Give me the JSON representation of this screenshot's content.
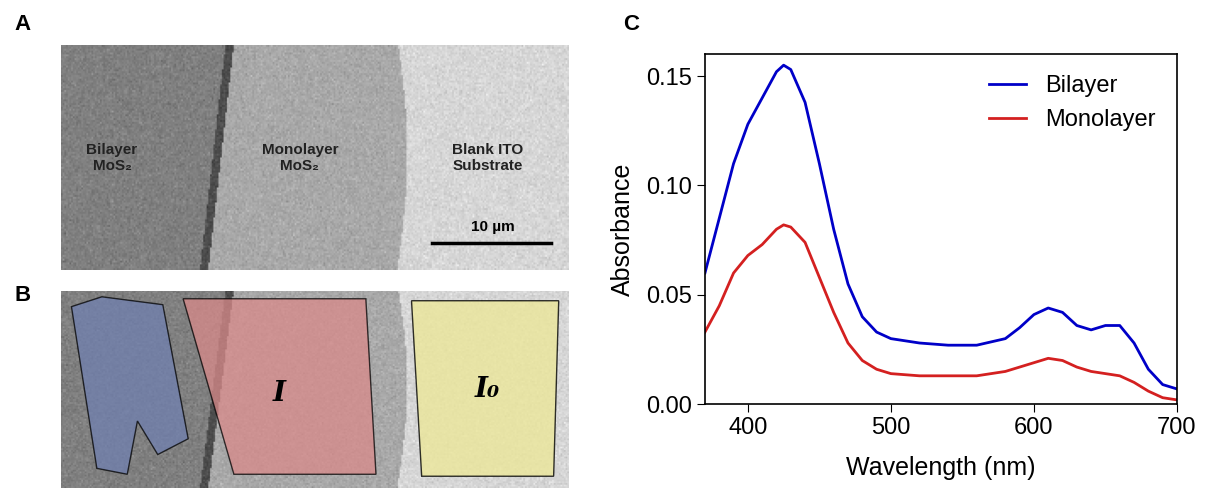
{
  "panels": {
    "A": {
      "label": "A",
      "regions": [
        "Bilayer MoS₂",
        "Monolayer MoS₂",
        "Blank ITO Substrate"
      ],
      "scale_bar": "10 µm"
    },
    "B": {
      "label": "B",
      "regions": [
        "I",
        "I₀"
      ]
    }
  },
  "chart_data": {
    "type": "line",
    "label": "C",
    "xlabel": "Wavelength (nm)",
    "ylabel": "Absorbance",
    "x": [
      370,
      380,
      390,
      400,
      410,
      420,
      425,
      430,
      440,
      450,
      460,
      470,
      480,
      490,
      500,
      520,
      540,
      560,
      580,
      590,
      600,
      610,
      620,
      630,
      640,
      650,
      660,
      670,
      680,
      690,
      700
    ],
    "series": [
      {
        "name": "Bilayer",
        "color": "#0000c8",
        "values": [
          0.06,
          0.085,
          0.11,
          0.128,
          0.14,
          0.152,
          0.155,
          0.153,
          0.138,
          0.11,
          0.08,
          0.055,
          0.04,
          0.033,
          0.03,
          0.028,
          0.027,
          0.027,
          0.03,
          0.035,
          0.041,
          0.044,
          0.042,
          0.036,
          0.034,
          0.036,
          0.036,
          0.028,
          0.016,
          0.009,
          0.007
        ]
      },
      {
        "name": "Monolayer",
        "color": "#d42020",
        "values": [
          0.033,
          0.045,
          0.06,
          0.068,
          0.073,
          0.08,
          0.082,
          0.081,
          0.074,
          0.058,
          0.042,
          0.028,
          0.02,
          0.016,
          0.014,
          0.013,
          0.013,
          0.013,
          0.015,
          0.017,
          0.019,
          0.021,
          0.02,
          0.017,
          0.015,
          0.014,
          0.013,
          0.01,
          0.006,
          0.003,
          0.002
        ]
      }
    ],
    "xlim": [
      370,
      700
    ],
    "xticks": [
      400,
      500,
      600,
      700
    ],
    "ylim": [
      0,
      0.16
    ],
    "yticks": [
      {
        "value": 0,
        "label": "0.00"
      },
      {
        "value": 0.05,
        "label": "0.05"
      },
      {
        "value": 0.1,
        "label": "0.10"
      },
      {
        "value": 0.15,
        "label": "0.15"
      }
    ],
    "legend": "upper right",
    "grid": false
  }
}
